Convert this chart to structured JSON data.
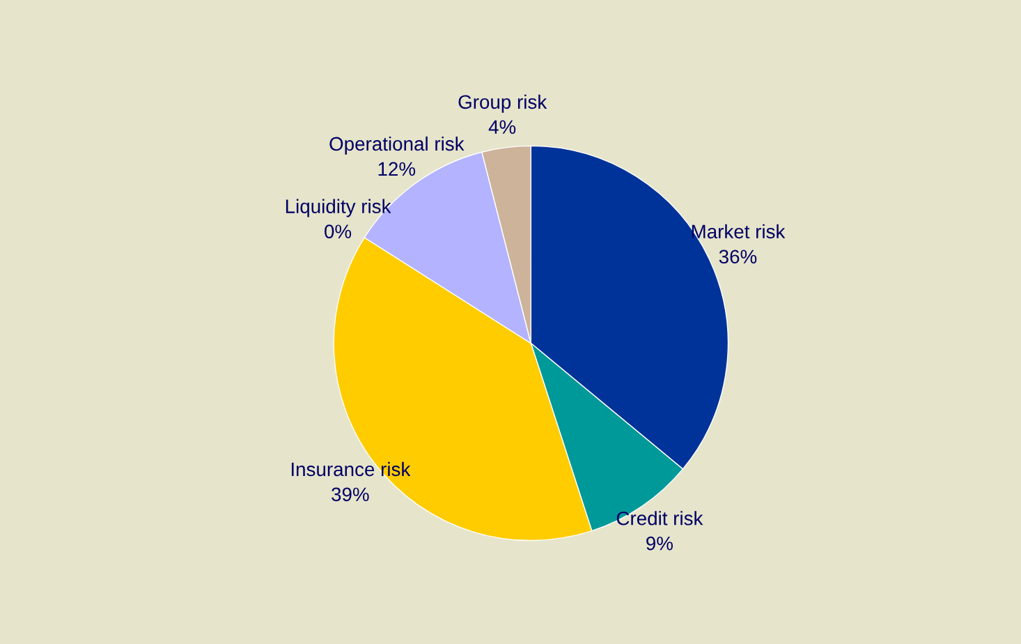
{
  "chart_data": {
    "type": "pie",
    "categories": [
      "Market risk",
      "Credit risk",
      "Insurance risk",
      "Liquidity risk",
      "Operational risk",
      "Group risk"
    ],
    "values": [
      36,
      9,
      39,
      0,
      12,
      4
    ],
    "value_labels": [
      "36%",
      "9%",
      "39%",
      "0%",
      "12%",
      "4%"
    ],
    "colors": [
      "#003399",
      "#009999",
      "#ffcc00",
      "#660066",
      "#b3b3ff",
      "#ccb399"
    ],
    "legend": false
  }
}
